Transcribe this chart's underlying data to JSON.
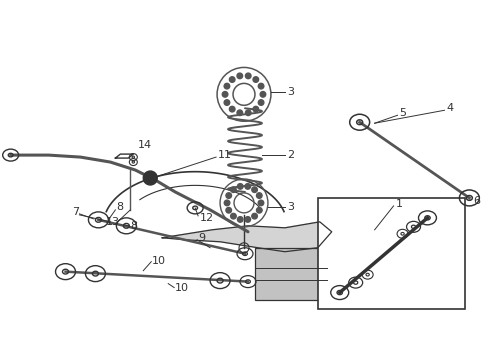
{
  "bg_color": "#ffffff",
  "fig_width": 4.9,
  "fig_height": 3.6,
  "dpi": 100,
  "dark": "#333333",
  "gray": "#666666",
  "line_color": "#444444"
}
